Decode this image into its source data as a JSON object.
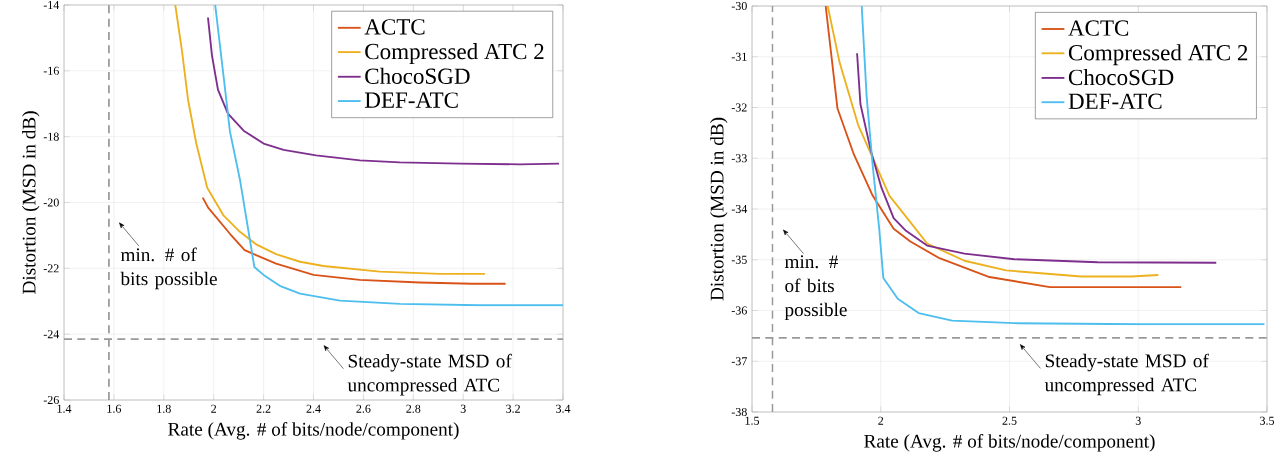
{
  "chart_data": [
    {
      "type": "line",
      "xlabel": "Rate (Avg. # of bits/node/component)",
      "ylabel": "Distortion (MSD in dB)",
      "xlim": [
        1.4,
        3.4
      ],
      "ylim": [
        -26,
        -14
      ],
      "xticks": [
        1.4,
        1.6,
        1.8,
        2,
        2.2,
        2.4,
        2.6,
        2.8,
        3,
        3.2,
        3.4
      ],
      "yticks": [
        -26,
        -24,
        -22,
        -20,
        -18,
        -16,
        -14
      ],
      "grid": true,
      "legend": "top right",
      "line_style": "solid",
      "marker": "none",
      "series": [
        {
          "name": "ACTC",
          "color": "#d95319",
          "x": [
            1.956,
            1.977,
            2.065,
            2.124,
            2.25,
            2.4,
            2.585,
            2.826,
            3.035,
            3.17
          ],
          "values": [
            -19.85,
            -20.15,
            -20.95,
            -21.45,
            -21.86,
            -22.2,
            -22.35,
            -22.43,
            -22.47,
            -22.47
          ]
        },
        {
          "name": "Compressed ATC 2",
          "color": "#edb120",
          "x": [
            1.846,
            1.873,
            1.897,
            1.93,
            1.974,
            2.04,
            2.105,
            2.17,
            2.25,
            2.346,
            2.44,
            2.666,
            2.906,
            3.087
          ],
          "values": [
            -14,
            -15.4,
            -16.87,
            -18.2,
            -19.55,
            -20.4,
            -20.89,
            -21.27,
            -21.57,
            -21.8,
            -21.93,
            -22.1,
            -22.17,
            -22.17
          ]
        },
        {
          "name": "ChocoSGD",
          "color": "#7e2f8e",
          "x": [
            1.977,
            1.993,
            2.017,
            2.057,
            2.12,
            2.2,
            2.28,
            2.41,
            2.586,
            2.746,
            2.987,
            3.227,
            3.384
          ],
          "values": [
            -14.38,
            -15.53,
            -16.57,
            -17.3,
            -17.82,
            -18.21,
            -18.4,
            -18.57,
            -18.72,
            -18.78,
            -18.82,
            -18.84,
            -18.82
          ]
        },
        {
          "name": "DEF-ATC",
          "color": "#4dbeee",
          "x": [
            2.006,
            2.041,
            2.065,
            2.105,
            2.163,
            2.2,
            2.265,
            2.346,
            2.506,
            2.746,
            3.067,
            3.4
          ],
          "values": [
            -14,
            -16.26,
            -17.84,
            -19.3,
            -21.96,
            -22.2,
            -22.53,
            -22.77,
            -22.98,
            -23.08,
            -23.12,
            -23.12
          ]
        }
      ],
      "ref_lines": [
        {
          "axis": "x",
          "value": 1.58,
          "label": "min. # of bits possible",
          "color": "#999999",
          "line_style": "dashed"
        },
        {
          "axis": "y",
          "value": -24.15,
          "label": "Steady-state MSD of uncompressed ATC",
          "color": "#999999",
          "line_style": "dashed"
        }
      ]
    },
    {
      "type": "line",
      "xlabel": "Rate (Avg. # of bits/node/component)",
      "ylabel": "Distortion (MSD in dB)",
      "xlim": [
        1.5,
        3.5
      ],
      "ylim": [
        -38,
        -30
      ],
      "xticks": [
        1.5,
        2,
        2.5,
        3,
        3.5
      ],
      "yticks": [
        -38,
        -37,
        -36,
        -35,
        -34,
        -33,
        -32,
        -31,
        -30
      ],
      "grid": true,
      "legend": "top right",
      "line_style": "solid",
      "marker": "none",
      "series": [
        {
          "name": "ACTC",
          "color": "#d95319",
          "x": [
            1.786,
            1.832,
            1.896,
            1.969,
            2.05,
            2.115,
            2.228,
            2.422,
            2.657,
            3.167
          ],
          "values": [
            -30,
            -32.02,
            -32.93,
            -33.74,
            -34.39,
            -34.64,
            -34.97,
            -35.34,
            -35.54,
            -35.54
          ]
        },
        {
          "name": "Compressed ATC 2",
          "color": "#edb120",
          "x": [
            1.794,
            1.84,
            1.912,
            2.034,
            2.098,
            2.18,
            2.325,
            2.487,
            2.778,
            2.972,
            3.078
          ],
          "values": [
            -30,
            -31.11,
            -32.34,
            -33.74,
            -34.15,
            -34.68,
            -35.02,
            -35.21,
            -35.33,
            -35.33,
            -35.3
          ]
        },
        {
          "name": "ChocoSGD",
          "color": "#7e2f8e",
          "x": [
            1.908,
            1.921,
            1.961,
            2.002,
            2.05,
            2.098,
            2.18,
            2.325,
            2.519,
            2.843,
            3.303
          ],
          "values": [
            -30.93,
            -31.93,
            -32.84,
            -33.57,
            -34.18,
            -34.43,
            -34.72,
            -34.88,
            -34.99,
            -35.05,
            -35.06
          ]
        },
        {
          "name": "DEF-ATC",
          "color": "#4dbeee",
          "x": [
            1.926,
            1.945,
            1.969,
            1.994,
            2.01,
            2.066,
            2.147,
            2.277,
            2.519,
            3.005,
            3.49
          ],
          "values": [
            -30,
            -31.77,
            -33.16,
            -34.39,
            -35.36,
            -35.77,
            -36.05,
            -36.2,
            -36.25,
            -36.27,
            -36.27
          ]
        }
      ],
      "ref_lines": [
        {
          "axis": "x",
          "value": 1.58,
          "label": "min. # of bits possible",
          "color": "#999999",
          "line_style": "dashed"
        },
        {
          "axis": "y",
          "value": -36.54,
          "label": "Steady-state MSD of uncompressed ATC",
          "color": "#999999",
          "line_style": "dashed"
        }
      ]
    }
  ]
}
